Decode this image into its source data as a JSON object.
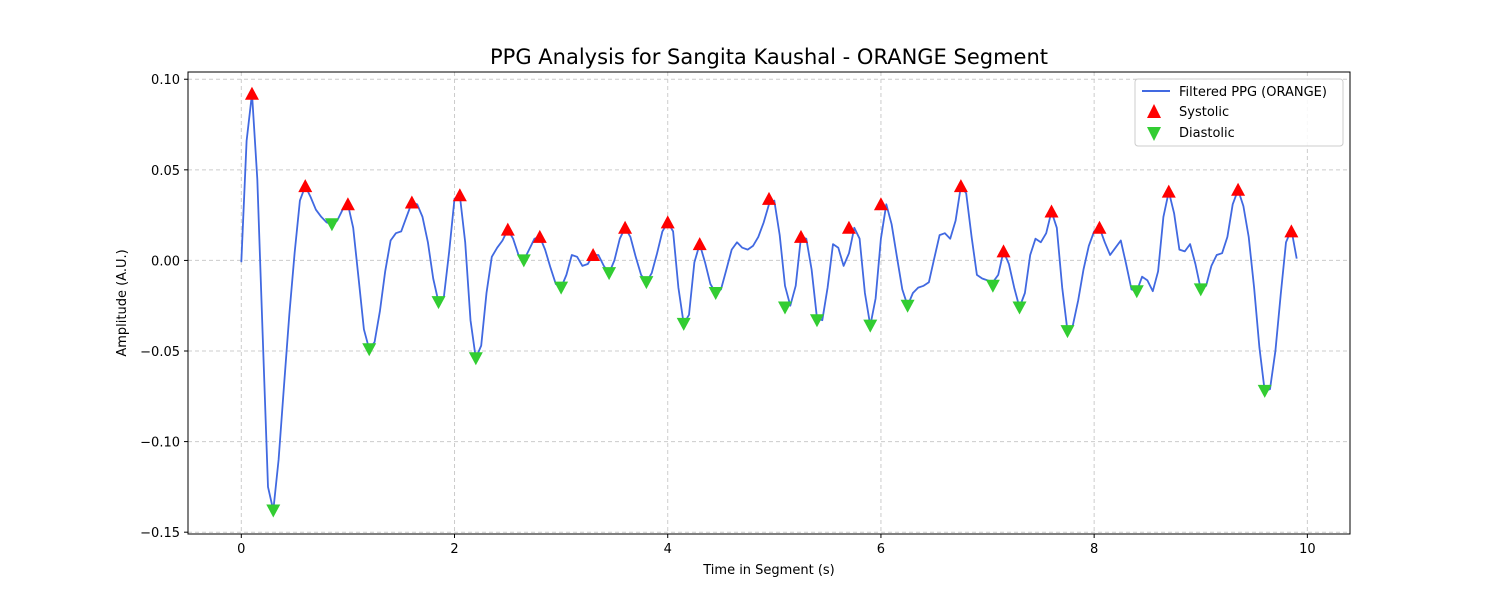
{
  "chart_data": {
    "type": "line",
    "title": "PPG Analysis for Sangita Kaushal - ORANGE Segment",
    "xlabel": "Time in Segment (s)",
    "ylabel": "Amplitude (A.U.)",
    "xlim": [
      -0.5,
      10.4
    ],
    "ylim": [
      -0.151,
      0.104
    ],
    "xticks": [
      0,
      2,
      4,
      6,
      8,
      10
    ],
    "xtick_labels": [
      "0",
      "2",
      "4",
      "6",
      "8",
      "10"
    ],
    "yticks": [
      -0.15,
      -0.1,
      -0.05,
      0.0,
      0.05,
      0.1
    ],
    "ytick_labels": [
      "−0.15",
      "−0.10",
      "−0.05",
      "0.00",
      "0.05",
      "0.10"
    ],
    "grid": true,
    "legend_position": "top-right",
    "series": [
      {
        "name": "Filtered PPG (ORANGE)",
        "kind": "line",
        "color": "#4169e1",
        "points": [
          [
            0.0,
            -0.001
          ],
          [
            0.05,
            0.066
          ],
          [
            0.1,
            0.092
          ],
          [
            0.15,
            0.045
          ],
          [
            0.2,
            -0.04
          ],
          [
            0.25,
            -0.125
          ],
          [
            0.3,
            -0.138
          ],
          [
            0.35,
            -0.11
          ],
          [
            0.4,
            -0.07
          ],
          [
            0.45,
            -0.03
          ],
          [
            0.5,
            0.004
          ],
          [
            0.55,
            0.033
          ],
          [
            0.6,
            0.041
          ],
          [
            0.65,
            0.035
          ],
          [
            0.7,
            0.028
          ],
          [
            0.75,
            0.024
          ],
          [
            0.8,
            0.021
          ],
          [
            0.85,
            0.02
          ],
          [
            0.9,
            0.022
          ],
          [
            0.95,
            0.028
          ],
          [
            1.0,
            0.031
          ],
          [
            1.05,
            0.018
          ],
          [
            1.1,
            -0.01
          ],
          [
            1.15,
            -0.038
          ],
          [
            1.2,
            -0.049
          ],
          [
            1.25,
            -0.045
          ],
          [
            1.3,
            -0.028
          ],
          [
            1.35,
            -0.006
          ],
          [
            1.4,
            0.011
          ],
          [
            1.45,
            0.015
          ],
          [
            1.5,
            0.016
          ],
          [
            1.55,
            0.024
          ],
          [
            1.6,
            0.032
          ],
          [
            1.65,
            0.031
          ],
          [
            1.7,
            0.024
          ],
          [
            1.75,
            0.01
          ],
          [
            1.8,
            -0.01
          ],
          [
            1.85,
            -0.023
          ],
          [
            1.9,
            -0.02
          ],
          [
            1.95,
            0.005
          ],
          [
            2.0,
            0.034
          ],
          [
            2.05,
            0.036
          ],
          [
            2.1,
            0.01
          ],
          [
            2.15,
            -0.033
          ],
          [
            2.2,
            -0.054
          ],
          [
            2.25,
            -0.047
          ],
          [
            2.3,
            -0.018
          ],
          [
            2.35,
            0.002
          ],
          [
            2.4,
            0.007
          ],
          [
            2.45,
            0.011
          ],
          [
            2.5,
            0.017
          ],
          [
            2.55,
            0.012
          ],
          [
            2.6,
            0.003
          ],
          [
            2.65,
            0.0
          ],
          [
            2.7,
            0.006
          ],
          [
            2.75,
            0.012
          ],
          [
            2.8,
            0.013
          ],
          [
            2.85,
            0.006
          ],
          [
            2.9,
            -0.004
          ],
          [
            2.95,
            -0.013
          ],
          [
            3.0,
            -0.015
          ],
          [
            3.05,
            -0.008
          ],
          [
            3.1,
            0.003
          ],
          [
            3.15,
            0.002
          ],
          [
            3.2,
            -0.003
          ],
          [
            3.25,
            -0.002
          ],
          [
            3.3,
            0.003
          ],
          [
            3.35,
            0.003
          ],
          [
            3.4,
            -0.003
          ],
          [
            3.45,
            -0.007
          ],
          [
            3.5,
            0.0
          ],
          [
            3.55,
            0.012
          ],
          [
            3.6,
            0.018
          ],
          [
            3.65,
            0.013
          ],
          [
            3.7,
            0.002
          ],
          [
            3.75,
            -0.008
          ],
          [
            3.8,
            -0.012
          ],
          [
            3.85,
            -0.007
          ],
          [
            3.9,
            0.004
          ],
          [
            3.95,
            0.016
          ],
          [
            4.0,
            0.021
          ],
          [
            4.05,
            0.016
          ],
          [
            4.1,
            -0.015
          ],
          [
            4.15,
            -0.035
          ],
          [
            4.2,
            -0.03
          ],
          [
            4.25,
            -0.001
          ],
          [
            4.3,
            0.009
          ],
          [
            4.35,
            -0.001
          ],
          [
            4.4,
            -0.013
          ],
          [
            4.45,
            -0.018
          ],
          [
            4.5,
            -0.016
          ],
          [
            4.55,
            -0.005
          ],
          [
            4.6,
            0.006
          ],
          [
            4.65,
            0.01
          ],
          [
            4.7,
            0.007
          ],
          [
            4.75,
            0.006
          ],
          [
            4.8,
            0.008
          ],
          [
            4.85,
            0.013
          ],
          [
            4.9,
            0.021
          ],
          [
            4.95,
            0.031
          ],
          [
            5.0,
            0.033
          ],
          [
            5.05,
            0.014
          ],
          [
            5.1,
            -0.014
          ],
          [
            5.15,
            -0.025
          ],
          [
            5.2,
            -0.014
          ],
          [
            5.25,
            0.013
          ],
          [
            5.3,
            0.012
          ],
          [
            5.35,
            -0.005
          ],
          [
            5.4,
            -0.032
          ],
          [
            5.45,
            -0.033
          ],
          [
            5.5,
            -0.015
          ],
          [
            5.55,
            0.009
          ],
          [
            5.6,
            0.007
          ],
          [
            5.65,
            -0.003
          ],
          [
            5.7,
            0.004
          ],
          [
            5.75,
            0.018
          ],
          [
            5.8,
            0.012
          ],
          [
            5.85,
            -0.018
          ],
          [
            5.9,
            -0.036
          ],
          [
            5.95,
            -0.021
          ],
          [
            6.0,
            0.012
          ],
          [
            6.05,
            0.031
          ],
          [
            6.1,
            0.02
          ],
          [
            6.15,
            0.002
          ],
          [
            6.2,
            -0.016
          ],
          [
            6.25,
            -0.025
          ],
          [
            6.3,
            -0.018
          ],
          [
            6.35,
            -0.015
          ],
          [
            6.4,
            -0.014
          ],
          [
            6.45,
            -0.012
          ],
          [
            6.5,
            0.001
          ],
          [
            6.55,
            0.014
          ],
          [
            6.6,
            0.015
          ],
          [
            6.65,
            0.012
          ],
          [
            6.7,
            0.022
          ],
          [
            6.75,
            0.041
          ],
          [
            6.8,
            0.037
          ],
          [
            6.85,
            0.013
          ],
          [
            6.9,
            -0.008
          ],
          [
            6.95,
            -0.01
          ],
          [
            7.0,
            -0.011
          ],
          [
            7.05,
            -0.012
          ],
          [
            7.1,
            -0.008
          ],
          [
            7.15,
            0.005
          ],
          [
            7.2,
            -0.002
          ],
          [
            7.25,
            -0.015
          ],
          [
            7.3,
            -0.026
          ],
          [
            7.35,
            -0.018
          ],
          [
            7.4,
            0.003
          ],
          [
            7.45,
            0.012
          ],
          [
            7.5,
            0.01
          ],
          [
            7.55,
            0.015
          ],
          [
            7.6,
            0.027
          ],
          [
            7.65,
            0.018
          ],
          [
            7.7,
            -0.015
          ],
          [
            7.75,
            -0.039
          ],
          [
            7.8,
            -0.036
          ],
          [
            7.85,
            -0.022
          ],
          [
            7.9,
            -0.005
          ],
          [
            7.95,
            0.008
          ],
          [
            8.0,
            0.016
          ],
          [
            8.05,
            0.018
          ],
          [
            8.1,
            0.01
          ],
          [
            8.15,
            0.003
          ],
          [
            8.2,
            0.007
          ],
          [
            8.25,
            0.011
          ],
          [
            8.3,
            -0.002
          ],
          [
            8.35,
            -0.016
          ],
          [
            8.4,
            -0.017
          ],
          [
            8.45,
            -0.009
          ],
          [
            8.5,
            -0.011
          ],
          [
            8.55,
            -0.017
          ],
          [
            8.6,
            -0.006
          ],
          [
            8.65,
            0.024
          ],
          [
            8.7,
            0.038
          ],
          [
            8.75,
            0.026
          ],
          [
            8.8,
            0.006
          ],
          [
            8.85,
            0.005
          ],
          [
            8.9,
            0.009
          ],
          [
            8.95,
            -0.002
          ],
          [
            9.0,
            -0.016
          ],
          [
            9.05,
            -0.014
          ],
          [
            9.1,
            -0.003
          ],
          [
            9.15,
            0.003
          ],
          [
            9.2,
            0.004
          ],
          [
            9.25,
            0.013
          ],
          [
            9.3,
            0.031
          ],
          [
            9.35,
            0.039
          ],
          [
            9.4,
            0.03
          ],
          [
            9.45,
            0.013
          ],
          [
            9.5,
            -0.015
          ],
          [
            9.55,
            -0.048
          ],
          [
            9.6,
            -0.072
          ],
          [
            9.65,
            -0.071
          ],
          [
            9.7,
            -0.05
          ],
          [
            9.75,
            -0.019
          ],
          [
            9.8,
            0.01
          ],
          [
            9.85,
            0.017
          ],
          [
            9.9,
            0.001
          ]
        ]
      },
      {
        "name": "Systolic",
        "kind": "marker-up",
        "color": "#ff0000",
        "points": [
          [
            0.1,
            0.092
          ],
          [
            0.6,
            0.041
          ],
          [
            1.0,
            0.031
          ],
          [
            1.6,
            0.032
          ],
          [
            2.05,
            0.036
          ],
          [
            2.5,
            0.017
          ],
          [
            2.8,
            0.013
          ],
          [
            3.3,
            0.003
          ],
          [
            3.6,
            0.018
          ],
          [
            4.0,
            0.021
          ],
          [
            4.3,
            0.009
          ],
          [
            4.95,
            0.034
          ],
          [
            5.25,
            0.013
          ],
          [
            5.7,
            0.018
          ],
          [
            6.0,
            0.031
          ],
          [
            6.75,
            0.041
          ],
          [
            7.15,
            0.005
          ],
          [
            7.6,
            0.027
          ],
          [
            8.05,
            0.018
          ],
          [
            8.7,
            0.038
          ],
          [
            9.35,
            0.039
          ],
          [
            9.85,
            0.016
          ]
        ]
      },
      {
        "name": "Diastolic",
        "kind": "marker-down",
        "color": "#32cd32",
        "points": [
          [
            0.3,
            -0.138
          ],
          [
            0.85,
            0.02
          ],
          [
            1.2,
            -0.049
          ],
          [
            1.85,
            -0.023
          ],
          [
            2.2,
            -0.054
          ],
          [
            2.65,
            0.0
          ],
          [
            3.0,
            -0.015
          ],
          [
            3.45,
            -0.007
          ],
          [
            3.8,
            -0.012
          ],
          [
            4.15,
            -0.035
          ],
          [
            4.45,
            -0.018
          ],
          [
            5.1,
            -0.026
          ],
          [
            5.4,
            -0.033
          ],
          [
            5.9,
            -0.036
          ],
          [
            6.25,
            -0.025
          ],
          [
            7.05,
            -0.014
          ],
          [
            7.3,
            -0.026
          ],
          [
            7.75,
            -0.039
          ],
          [
            8.4,
            -0.017
          ],
          [
            9.0,
            -0.016
          ],
          [
            9.6,
            -0.072
          ]
        ]
      }
    ]
  }
}
